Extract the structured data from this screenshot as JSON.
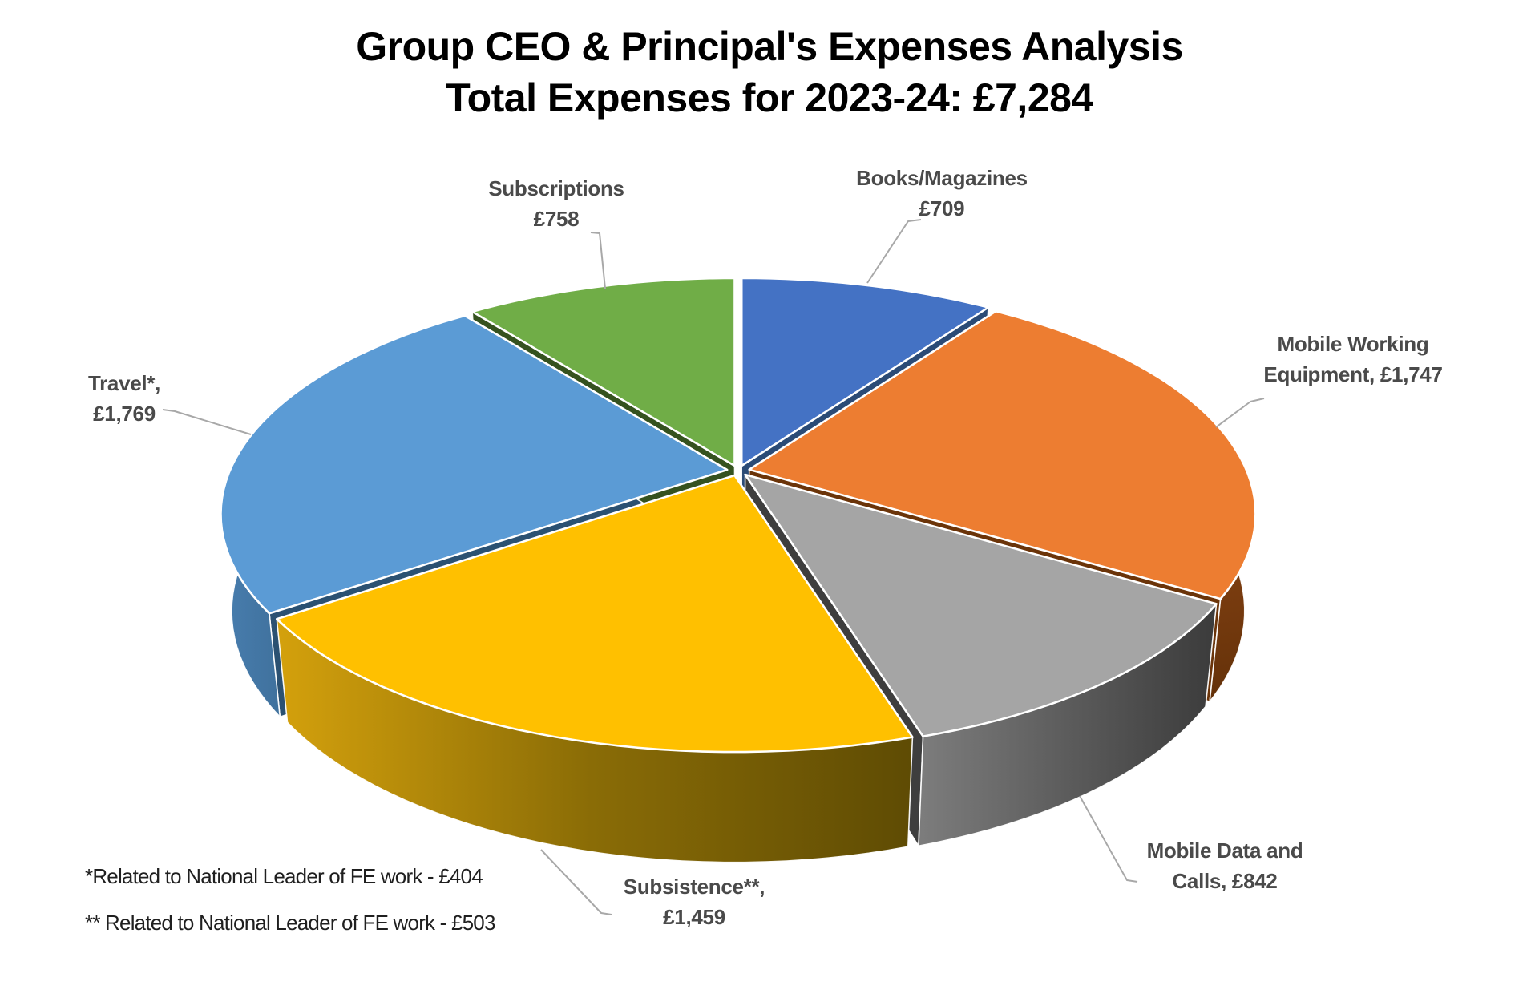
{
  "page": {
    "background": "#FFFFFF"
  },
  "chart_data": {
    "type": "pie",
    "style": "3d-exploded",
    "title": "Group CEO & Principal's Expenses Analysis",
    "subtitle": "Total Expenses for 2023-24: £7,284",
    "currency_symbol": "£",
    "total": 7284,
    "start_angle_deg": 0,
    "direction": "clockwise",
    "legend": "none",
    "label_color": "#4A4A4A",
    "leader_line_color": "#A8A8A8",
    "segments": [
      {
        "name": "Books/Magazines",
        "value": 709,
        "label_lines": [
          "Books/Magazines",
          "£709"
        ],
        "color": "#4472C4",
        "side_color": "#2B4B76",
        "side_gradient": null
      },
      {
        "name": "Mobile Working Equipment",
        "value": 1747,
        "label_lines": [
          "Mobile Working",
          "Equipment, £1,747"
        ],
        "color": "#ED7D31",
        "side_color": "#6B3409",
        "side_gradient": [
          "#8A4415",
          "#5F2F07"
        ]
      },
      {
        "name": "Mobile Data and Calls",
        "value": 842,
        "label_lines": [
          "Mobile Data and",
          "Calls, £842"
        ],
        "color": "#A5A5A5",
        "side_color": "#3E3E3E",
        "side_gradient": [
          "#7C7C7C",
          "#383838"
        ]
      },
      {
        "name": "Subsistence",
        "value": 1459,
        "label_lines": [
          "Subsistence**,",
          "£1,459"
        ],
        "color": "#FFC000",
        "side_color": "#6E5805",
        "side_gradient": [
          "#D7A30D",
          "#8A6C06",
          "#5E4B04"
        ]
      },
      {
        "name": "Travel",
        "value": 1769,
        "label_lines": [
          "Travel*,",
          "£1,769"
        ],
        "color": "#5B9BD5",
        "side_color": "#2B5172",
        "side_gradient": [
          "#4A80B2",
          "#28506E"
        ]
      },
      {
        "name": "Subscriptions",
        "value": 758,
        "label_lines": [
          "Subscriptions",
          "£758"
        ],
        "color": "#70AD47",
        "side_color": "#35521F",
        "side_gradient": null
      }
    ],
    "footnotes": [
      "*Related to National Leader of FE work - £404",
      "** Related to National Leader of FE work - £503"
    ]
  }
}
